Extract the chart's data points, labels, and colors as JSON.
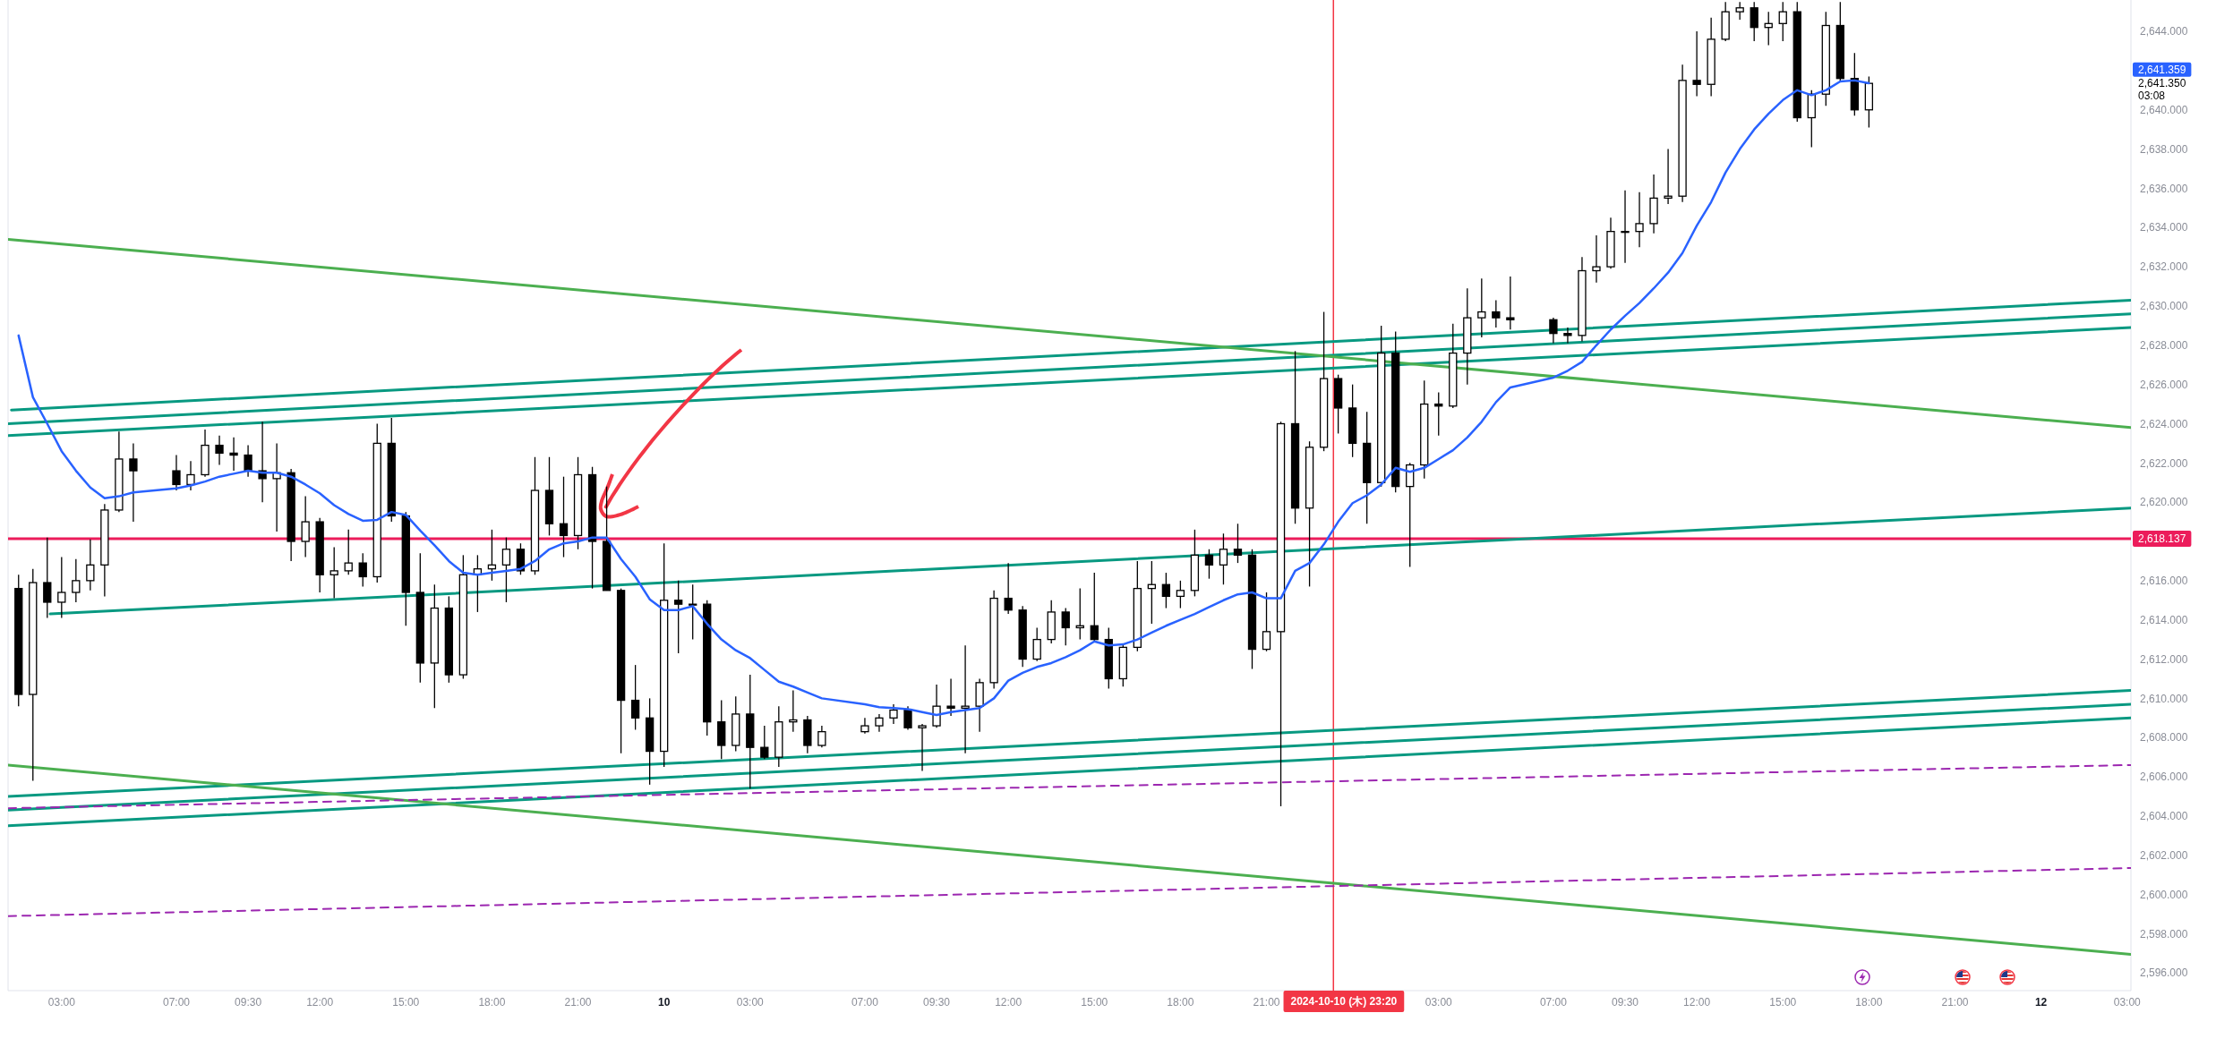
{
  "chart_data": {
    "type": "candlestick",
    "color": "#000000",
    "x": [
      "2024-10-09T01:30",
      "2024-10-09T02:00",
      "2024-10-09T02:30",
      "2024-10-09T03:00",
      "2024-10-09T03:30",
      "2024-10-09T04:00",
      "2024-10-09T04:30",
      "2024-10-09T05:00",
      "2024-10-09T05:30",
      "2024-10-09T07:00",
      "2024-10-09T07:30",
      "2024-10-09T08:00",
      "2024-10-09T08:30",
      "2024-10-09T09:00",
      "2024-10-09T09:30",
      "2024-10-09T10:00",
      "2024-10-09T10:30",
      "2024-10-09T11:00",
      "2024-10-09T11:30",
      "2024-10-09T12:00",
      "2024-10-09T12:30",
      "2024-10-09T13:00",
      "2024-10-09T13:30",
      "2024-10-09T14:00",
      "2024-10-09T14:30",
      "2024-10-09T15:00",
      "2024-10-09T15:30",
      "2024-10-09T16:00",
      "2024-10-09T16:30",
      "2024-10-09T17:00",
      "2024-10-09T17:30",
      "2024-10-09T18:00",
      "2024-10-09T18:30",
      "2024-10-09T19:00",
      "2024-10-09T19:30",
      "2024-10-09T20:00",
      "2024-10-09T20:30",
      "2024-10-09T21:00",
      "2024-10-09T21:30",
      "2024-10-09T22:00",
      "2024-10-09T22:30",
      "2024-10-09T23:00",
      "2024-10-09T23:30",
      "2024-10-10T00:00",
      "2024-10-10T00:30",
      "2024-10-10T01:00",
      "2024-10-10T01:30",
      "2024-10-10T02:00",
      "2024-10-10T02:30",
      "2024-10-10T03:00",
      "2024-10-10T03:30",
      "2024-10-10T04:00",
      "2024-10-10T04:30",
      "2024-10-10T05:00",
      "2024-10-10T05:30",
      "2024-10-10T07:00",
      "2024-10-10T07:30",
      "2024-10-10T08:00",
      "2024-10-10T08:30",
      "2024-10-10T09:00",
      "2024-10-10T09:30",
      "2024-10-10T10:00",
      "2024-10-10T10:30",
      "2024-10-10T11:00",
      "2024-10-10T11:30",
      "2024-10-10T12:00",
      "2024-10-10T12:30",
      "2024-10-10T13:00",
      "2024-10-10T13:30",
      "2024-10-10T14:00",
      "2024-10-10T14:30",
      "2024-10-10T15:00",
      "2024-10-10T15:30",
      "2024-10-10T16:00",
      "2024-10-10T16:30",
      "2024-10-10T17:00",
      "2024-10-10T17:30",
      "2024-10-10T18:00",
      "2024-10-10T18:30",
      "2024-10-10T19:00",
      "2024-10-10T19:30",
      "2024-10-10T20:00",
      "2024-10-10T20:30",
      "2024-10-10T21:00",
      "2024-10-10T21:30",
      "2024-10-10T22:00",
      "2024-10-10T22:30",
      "2024-10-10T23:00",
      "2024-10-10T23:30",
      "2024-10-11T00:00",
      "2024-10-11T00:30",
      "2024-10-11T01:00",
      "2024-10-11T01:30",
      "2024-10-11T02:00",
      "2024-10-11T02:30",
      "2024-10-11T03:00",
      "2024-10-11T03:30",
      "2024-10-11T04:00",
      "2024-10-11T04:30",
      "2024-10-11T05:00",
      "2024-10-11T05:30",
      "2024-10-11T07:00",
      "2024-10-11T07:30",
      "2024-10-11T08:00",
      "2024-10-11T08:30",
      "2024-10-11T09:00",
      "2024-10-11T09:30",
      "2024-10-11T10:00",
      "2024-10-11T10:30",
      "2024-10-11T11:00",
      "2024-10-11T11:30",
      "2024-10-11T12:00",
      "2024-10-11T12:30",
      "2024-10-11T13:00",
      "2024-10-11T13:30",
      "2024-10-11T14:00",
      "2024-10-11T14:30",
      "2024-10-11T15:00",
      "2024-10-11T15:30",
      "2024-10-11T16:00",
      "2024-10-11T16:30",
      "2024-10-11T17:00",
      "2024-10-11T17:30",
      "2024-10-11T18:00"
    ],
    "ohlc": [
      [
        2615.6,
        2616.3,
        2609.6,
        2610.2
      ],
      [
        2610.2,
        2616.6,
        2605.8,
        2615.9
      ],
      [
        2615.9,
        2618.2,
        2614.1,
        2614.9
      ],
      [
        2614.9,
        2617.2,
        2614.1,
        2615.4
      ],
      [
        2615.4,
        2617.1,
        2614.9,
        2616.0
      ],
      [
        2616.0,
        2618.1,
        2615.5,
        2616.8
      ],
      [
        2616.8,
        2619.9,
        2615.2,
        2619.6
      ],
      [
        2619.6,
        2623.6,
        2619.5,
        2622.2
      ],
      [
        2622.2,
        2623.0,
        2619.0,
        2621.6
      ],
      [
        2621.6,
        2622.4,
        2620.6,
        2620.9
      ],
      [
        2620.9,
        2622.1,
        2620.6,
        2621.4
      ],
      [
        2621.4,
        2623.7,
        2621.3,
        2622.9
      ],
      [
        2622.9,
        2623.4,
        2621.9,
        2622.5
      ],
      [
        2622.5,
        2623.3,
        2621.6,
        2622.4
      ],
      [
        2622.4,
        2622.9,
        2621.3,
        2621.6
      ],
      [
        2621.6,
        2624.1,
        2620.0,
        2621.2
      ],
      [
        2621.2,
        2623.0,
        2618.5,
        2621.5
      ],
      [
        2621.5,
        2621.7,
        2617.0,
        2618.0
      ],
      [
        2618.0,
        2620.3,
        2617.2,
        2619.0
      ],
      [
        2619.0,
        2619.2,
        2615.4,
        2616.3
      ],
      [
        2616.3,
        2617.7,
        2615.1,
        2616.5
      ],
      [
        2616.5,
        2618.6,
        2616.3,
        2616.9
      ],
      [
        2616.9,
        2617.4,
        2615.7,
        2616.2
      ],
      [
        2616.2,
        2624.0,
        2615.9,
        2623.0
      ],
      [
        2623.0,
        2624.3,
        2619.0,
        2619.3
      ],
      [
        2619.3,
        2619.5,
        2613.7,
        2615.4
      ],
      [
        2615.4,
        2617.4,
        2610.8,
        2611.8
      ],
      [
        2611.8,
        2615.8,
        2609.5,
        2614.6
      ],
      [
        2614.6,
        2615.2,
        2610.8,
        2611.2
      ],
      [
        2611.2,
        2617.3,
        2611.0,
        2616.3
      ],
      [
        2616.3,
        2617.3,
        2614.4,
        2616.6
      ],
      [
        2616.6,
        2618.6,
        2616.0,
        2616.8
      ],
      [
        2616.8,
        2618.2,
        2614.9,
        2617.6
      ],
      [
        2617.6,
        2617.9,
        2616.3,
        2616.5
      ],
      [
        2616.5,
        2622.3,
        2616.3,
        2620.6
      ],
      [
        2620.6,
        2622.3,
        2618.3,
        2618.9
      ],
      [
        2618.9,
        2621.3,
        2617.2,
        2618.3
      ],
      [
        2618.3,
        2622.3,
        2617.6,
        2621.4
      ],
      [
        2621.4,
        2621.8,
        2615.6,
        2618.0
      ],
      [
        2618.0,
        2620.8,
        2615.5,
        2615.5
      ],
      [
        2615.5,
        2615.6,
        2607.2,
        2609.9
      ],
      [
        2609.9,
        2611.7,
        2608.4,
        2609.0
      ],
      [
        2609.0,
        2610.0,
        2605.6,
        2607.3
      ],
      [
        2607.3,
        2617.9,
        2606.5,
        2615.0
      ],
      [
        2615.0,
        2616.0,
        2612.3,
        2614.8
      ],
      [
        2614.8,
        2615.8,
        2613.0,
        2614.8
      ],
      [
        2614.8,
        2615.0,
        2608.1,
        2608.8
      ],
      [
        2608.8,
        2609.9,
        2606.9,
        2607.6
      ],
      [
        2607.6,
        2610.1,
        2607.3,
        2609.2
      ],
      [
        2609.2,
        2611.2,
        2605.4,
        2607.5
      ],
      [
        2607.5,
        2608.6,
        2606.9,
        2607.0
      ],
      [
        2607.0,
        2609.6,
        2606.5,
        2608.8
      ],
      [
        2608.8,
        2610.4,
        2608.3,
        2608.9
      ],
      [
        2608.9,
        2609.1,
        2607.2,
        2607.6
      ],
      [
        2607.6,
        2608.6,
        2607.5,
        2608.3
      ],
      [
        2608.3,
        2609.0,
        2608.2,
        2608.6
      ],
      [
        2608.6,
        2609.2,
        2608.3,
        2609.0
      ],
      [
        2609.0,
        2609.7,
        2608.7,
        2609.4
      ],
      [
        2609.4,
        2609.6,
        2608.4,
        2608.5
      ],
      [
        2608.5,
        2608.7,
        2606.3,
        2608.6
      ],
      [
        2608.6,
        2610.7,
        2608.5,
        2609.6
      ],
      [
        2609.6,
        2611.0,
        2609.1,
        2609.5
      ],
      [
        2609.5,
        2612.7,
        2607.2,
        2609.6
      ],
      [
        2609.6,
        2611.0,
        2608.3,
        2610.8
      ],
      [
        2610.8,
        2615.5,
        2610.5,
        2615.1
      ],
      [
        2615.1,
        2616.9,
        2614.3,
        2614.5
      ],
      [
        2614.5,
        2614.7,
        2611.6,
        2612.0
      ],
      [
        2612.0,
        2613.6,
        2611.9,
        2613.0
      ],
      [
        2613.0,
        2615.0,
        2612.8,
        2614.4
      ],
      [
        2614.4,
        2614.6,
        2612.7,
        2613.6
      ],
      [
        2613.6,
        2615.6,
        2613.0,
        2613.7
      ],
      [
        2613.7,
        2616.4,
        2612.9,
        2613.0
      ],
      [
        2613.0,
        2613.6,
        2610.5,
        2611.0
      ],
      [
        2611.0,
        2612.8,
        2610.6,
        2612.6
      ],
      [
        2612.6,
        2617.0,
        2612.4,
        2615.6
      ],
      [
        2615.6,
        2617.0,
        2613.8,
        2615.8
      ],
      [
        2615.8,
        2616.4,
        2614.6,
        2615.2
      ],
      [
        2615.2,
        2616.0,
        2614.6,
        2615.5
      ],
      [
        2615.5,
        2618.6,
        2615.2,
        2617.3
      ],
      [
        2617.3,
        2617.6,
        2616.1,
        2616.8
      ],
      [
        2616.8,
        2618.4,
        2615.8,
        2617.6
      ],
      [
        2617.6,
        2618.9,
        2616.9,
        2617.3
      ],
      [
        2617.3,
        2617.6,
        2611.5,
        2612.5
      ],
      [
        2612.5,
        2615.4,
        2612.4,
        2613.4
      ],
      [
        2613.4,
        2624.1,
        2604.5,
        2624.0
      ],
      [
        2624.0,
        2627.7,
        2618.9,
        2619.7
      ],
      [
        2619.7,
        2623.1,
        2615.7,
        2622.8
      ],
      [
        2622.8,
        2629.7,
        2622.6,
        2626.3
      ],
      [
        2626.3,
        2626.5,
        2623.5,
        2624.8
      ],
      [
        2624.8,
        2626.0,
        2622.3,
        2623.0
      ],
      [
        2623.0,
        2624.6,
        2618.9,
        2621.0
      ],
      [
        2621.0,
        2629.0,
        2620.8,
        2627.6
      ],
      [
        2627.6,
        2628.7,
        2620.5,
        2620.8
      ],
      [
        2620.8,
        2622.0,
        2616.7,
        2621.9
      ],
      [
        2621.9,
        2626.2,
        2621.2,
        2625.0
      ],
      [
        2625.0,
        2625.6,
        2623.4,
        2624.9
      ],
      [
        2624.9,
        2629.1,
        2624.8,
        2627.6
      ],
      [
        2627.6,
        2630.9,
        2626.0,
        2629.4
      ],
      [
        2629.4,
        2631.4,
        2628.4,
        2629.7
      ],
      [
        2629.7,
        2630.3,
        2628.9,
        2629.4
      ],
      [
        2629.4,
        2631.5,
        2628.8,
        2629.3
      ],
      [
        2629.3,
        2629.4,
        2628.1,
        2628.6
      ],
      [
        2628.6,
        2628.9,
        2628.1,
        2628.5
      ],
      [
        2628.5,
        2632.5,
        2628.2,
        2631.8
      ],
      [
        2631.8,
        2633.6,
        2631.2,
        2632.0
      ],
      [
        2632.0,
        2634.5,
        2631.9,
        2633.8
      ],
      [
        2633.8,
        2635.9,
        2632.2,
        2633.8
      ],
      [
        2633.8,
        2635.8,
        2633.0,
        2634.2
      ],
      [
        2634.2,
        2636.7,
        2633.7,
        2635.5
      ],
      [
        2635.5,
        2638.0,
        2635.2,
        2635.6
      ],
      [
        2635.6,
        2642.3,
        2635.3,
        2641.5
      ],
      [
        2641.5,
        2644.0,
        2640.7,
        2641.3
      ],
      [
        2641.3,
        2644.7,
        2640.7,
        2643.6
      ],
      [
        2643.6,
        2645.5,
        2643.5,
        2645.0
      ],
      [
        2645.0,
        2645.5,
        2644.6,
        2645.2
      ],
      [
        2645.2,
        2645.5,
        2643.5,
        2644.2
      ],
      [
        2644.2,
        2645.0,
        2643.3,
        2644.4
      ],
      [
        2644.4,
        2645.5,
        2643.5,
        2645.0
      ],
      [
        2645.0,
        2645.5,
        2639.4,
        2639.6
      ],
      [
        2639.6,
        2641.0,
        2638.1,
        2640.8
      ],
      [
        2640.8,
        2645.0,
        2640.2,
        2644.3
      ],
      [
        2644.3,
        2645.5,
        2641.4,
        2641.6
      ],
      [
        2641.6,
        2642.9,
        2639.7,
        2640.0
      ],
      [
        2640.0,
        2641.7,
        2639.1,
        2641.35
      ]
    ],
    "series": [
      {
        "type": "line",
        "color": "#2962ff",
        "values": [
          2628.5,
          2625.35,
          2624.0,
          2622.6,
          2621.6,
          2620.75,
          2620.2,
          2620.3,
          2620.5,
          2620.7,
          2620.85,
          2621.05,
          2621.3,
          2621.45,
          2621.6,
          2621.5,
          2621.5,
          2621.3,
          2620.9,
          2620.45,
          2619.85,
          2619.4,
          2619.05,
          2619.1,
          2619.5,
          2619.35,
          2618.55,
          2617.8,
          2617.0,
          2616.4,
          2616.3,
          2616.4,
          2616.5,
          2616.6,
          2617.0,
          2617.6,
          2617.9,
          2618.0,
          2618.2,
          2618.2,
          2617.1,
          2616.2,
          2615.05,
          2614.5,
          2614.5,
          2614.7,
          2613.8,
          2613.0,
          2612.45,
          2612.05,
          2611.45,
          2610.85,
          2610.6,
          2610.3,
          2610.0,
          2609.7,
          2609.55,
          2609.5,
          2609.45,
          2609.3,
          2609.15,
          2609.3,
          2609.4,
          2609.5,
          2610.0,
          2610.9,
          2611.3,
          2611.6,
          2611.8,
          2612.1,
          2612.45,
          2612.9,
          2612.7,
          2612.75,
          2613.0,
          2613.35,
          2613.7,
          2614.0,
          2614.3,
          2614.65,
          2615.0,
          2615.3,
          2615.4,
          2615.1,
          2615.1,
          2616.5,
          2616.9,
          2617.85,
          2619.0,
          2619.95,
          2620.35,
          2620.9,
          2621.75,
          2621.55,
          2621.75,
          2622.2,
          2622.65,
          2623.3,
          2624.1,
          2625.1,
          2625.85,
          2626.35,
          2626.7,
          2627.15,
          2628.0,
          2628.8,
          2629.5,
          2630.15,
          2630.9,
          2631.7,
          2632.7,
          2634.1,
          2635.3,
          2636.8,
          2638.0,
          2639.0,
          2639.8,
          2640.5,
          2641.0,
          2640.75,
          2641.0,
          2641.45,
          2641.5,
          2641.359
        ]
      },
      {
        "type": "line",
        "color": "#089981",
        "x": [
          "2024-10-09T01:15",
          "2024-10-12T03:08"
        ],
        "values": [
          2624.7,
          2630.3
        ]
      },
      {
        "type": "line",
        "color": "#089981",
        "x": [
          "2024-10-09T01:08",
          "2024-10-12T03:08"
        ],
        "values": [
          2624.0,
          2629.6
        ]
      },
      {
        "type": "line",
        "color": "#089981",
        "x": [
          "2024-10-09T01:08",
          "2024-10-12T03:08"
        ],
        "values": [
          2623.4,
          2628.9
        ]
      },
      {
        "type": "line",
        "color": "#089981",
        "x": [
          "2024-10-09T02:36",
          "2024-10-12T03:08"
        ],
        "values": [
          2614.3,
          2619.7
        ]
      },
      {
        "type": "line",
        "color": "#089981",
        "x": [
          "2024-10-09T01:08",
          "2024-10-12T03:08"
        ],
        "values": [
          2605.0,
          2610.4
        ]
      },
      {
        "type": "line",
        "color": "#089981",
        "x": [
          "2024-10-09T01:08",
          "2024-10-12T03:08"
        ],
        "values": [
          2604.3,
          2609.7
        ]
      },
      {
        "type": "line",
        "color": "#089981",
        "x": [
          "2024-10-09T01:08",
          "2024-10-12T03:08"
        ],
        "values": [
          2603.5,
          2609.0
        ]
      },
      {
        "type": "line",
        "color": "#4caf50",
        "x": [
          "2024-10-09T01:08",
          "2024-10-12T03:08"
        ],
        "values": [
          2633.4,
          2623.8
        ]
      },
      {
        "type": "line",
        "color": "#4caf50",
        "x": [
          "2024-10-09T01:08",
          "2024-10-12T03:08"
        ],
        "values": [
          2606.6,
          2596.95
        ]
      },
      {
        "type": "line",
        "color": "#9c27b0",
        "line_style": "dashed",
        "x": [
          "2024-10-09T01:08",
          "2024-10-12T03:08"
        ],
        "values": [
          2604.4,
          2606.6
        ]
      },
      {
        "type": "line",
        "color": "#9c27b0",
        "line_style": "dashed",
        "x": [
          "2024-10-09T01:08",
          "2024-10-12T03:08"
        ],
        "values": [
          2598.9,
          2601.35
        ]
      }
    ],
    "xlim": [
      "2024-10-09T01:08",
      "2024-10-12T03:08"
    ],
    "ylim": [
      2595.1,
      2645.6
    ],
    "xticks": [
      {
        "value": "2024-10-09T03:00",
        "label": "03:00"
      },
      {
        "value": "2024-10-09T07:00",
        "label": "07:00"
      },
      {
        "value": "2024-10-09T09:30",
        "label": "09:30"
      },
      {
        "value": "2024-10-09T12:00",
        "label": "12:00"
      },
      {
        "value": "2024-10-09T15:00",
        "label": "15:00"
      },
      {
        "value": "2024-10-09T18:00",
        "label": "18:00"
      },
      {
        "value": "2024-10-09T21:00",
        "label": "21:00"
      },
      {
        "value": "2024-10-10T00:00",
        "label": "10"
      },
      {
        "value": "2024-10-10T03:00",
        "label": "03:00"
      },
      {
        "value": "2024-10-10T07:00",
        "label": "07:00"
      },
      {
        "value": "2024-10-10T09:30",
        "label": "09:30"
      },
      {
        "value": "2024-10-10T12:00",
        "label": "12:00"
      },
      {
        "value": "2024-10-10T15:00",
        "label": "15:00"
      },
      {
        "value": "2024-10-10T18:00",
        "label": "18:00"
      },
      {
        "value": "2024-10-10T21:00",
        "label": "21:00"
      },
      {
        "value": "2024-10-11T03:00",
        "label": "03:00"
      },
      {
        "value": "2024-10-11T07:00",
        "label": "07:00"
      },
      {
        "value": "2024-10-11T09:30",
        "label": "09:30"
      },
      {
        "value": "2024-10-11T12:00",
        "label": "12:00"
      },
      {
        "value": "2024-10-11T15:00",
        "label": "15:00"
      },
      {
        "value": "2024-10-11T18:00",
        "label": "18:00"
      },
      {
        "value": "2024-10-11T21:00",
        "label": "21:00"
      },
      {
        "value": "2024-10-12T00:00",
        "label": "12"
      },
      {
        "value": "2024-10-12T03:00",
        "label": "03:00"
      }
    ],
    "yticks": [
      {
        "value": 2596,
        "label": "2,596.000"
      },
      {
        "value": 2598,
        "label": "2,598.000"
      },
      {
        "value": 2600,
        "label": "2,600.000"
      },
      {
        "value": 2602,
        "label": "2,602.000"
      },
      {
        "value": 2604,
        "label": "2,604.000"
      },
      {
        "value": 2606,
        "label": "2,606.000"
      },
      {
        "value": 2608,
        "label": "2,608.000"
      },
      {
        "value": 2610,
        "label": "2,610.000"
      },
      {
        "value": 2612,
        "label": "2,612.000"
      },
      {
        "value": 2614,
        "label": "2,614.000"
      },
      {
        "value": 2616,
        "label": "2,616.000"
      },
      {
        "value": 2620,
        "label": "2,620.000"
      },
      {
        "value": 2622,
        "label": "2,622.000"
      },
      {
        "value": 2624,
        "label": "2,624.000"
      },
      {
        "value": 2626,
        "label": "2,626.000"
      },
      {
        "value": 2628,
        "label": "2,628.000"
      },
      {
        "value": 2630,
        "label": "2,630.000"
      },
      {
        "value": 2632,
        "label": "2,632.000"
      },
      {
        "value": 2634,
        "label": "2,634.000"
      },
      {
        "value": 2636,
        "label": "2,636.000"
      },
      {
        "value": 2638,
        "label": "2,638.000"
      },
      {
        "value": 2640,
        "label": "2,640.000"
      },
      {
        "value": 2644,
        "label": "2,644.000"
      }
    ],
    "ref_lines": [
      {
        "axis": "y",
        "value": 2618.137,
        "label": "2,618.137",
        "color": "#ec1c5b"
      },
      {
        "axis": "x",
        "value": "2024-10-10T23:20",
        "label": "2024-10-10 (木) 23:20",
        "color": "#f23645"
      }
    ],
    "annotations": [
      "2,641.359",
      "2,641.350",
      "03:08"
    ]
  }
}
